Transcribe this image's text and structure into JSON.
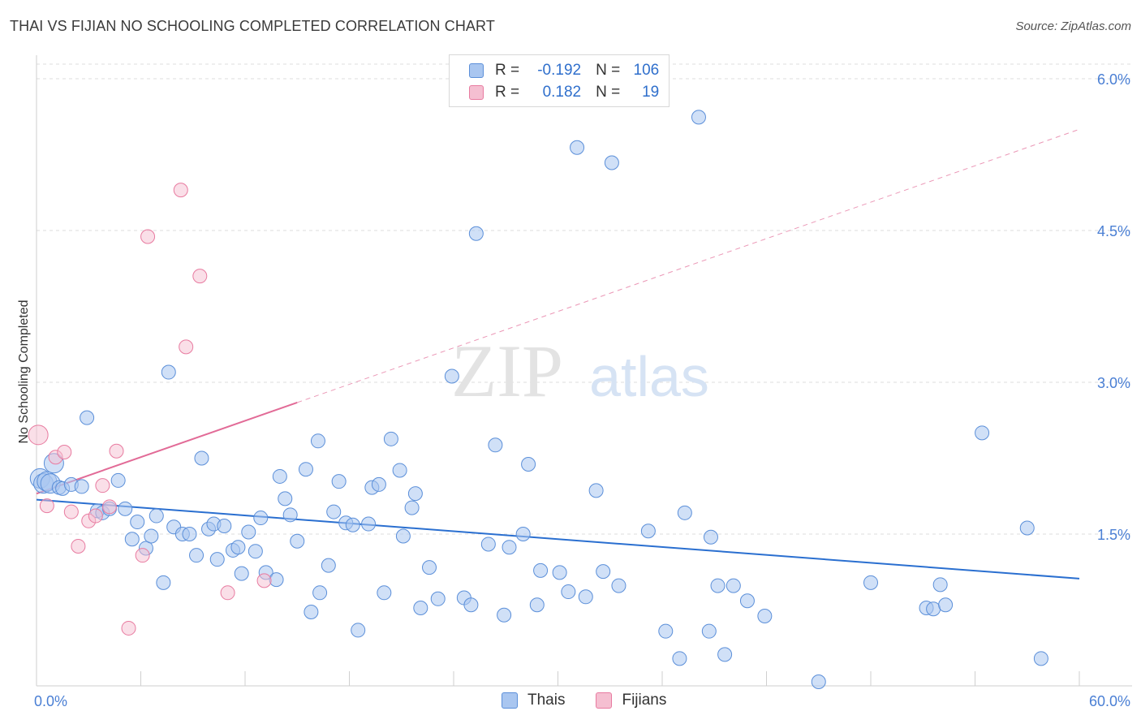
{
  "title": "THAI VS FIJIAN NO SCHOOLING COMPLETED CORRELATION CHART",
  "source": "Source: ZipAtlas.com",
  "watermark": {
    "zip": "ZIP",
    "atlas": "atlas"
  },
  "colors": {
    "blue": "#5b8fd9",
    "blue_fill": "#a9c6f0",
    "pink": "#e87ba0",
    "pink_fill": "#f5bfd1",
    "blue_line": "#2a6fd0",
    "pink_line": "#e26b97",
    "axis_text": "#4a7fd4"
  },
  "legend": {
    "rows": [
      {
        "series": "Thais",
        "r_label": "R =",
        "r_value": "-0.192",
        "n_label": "N =",
        "n_value": "106"
      },
      {
        "series": "Fijians",
        "r_label": "R =",
        "r_value": "0.182",
        "n_label": "N =",
        "n_value": "19"
      }
    ]
  },
  "bottom_legend": [
    {
      "label": "Thais"
    },
    {
      "label": "Fijians"
    }
  ],
  "chart_data": {
    "type": "scatter",
    "title": "THAI VS FIJIAN NO SCHOOLING COMPLETED CORRELATION CHART",
    "xlabel": "",
    "ylabel": "No Schooling Completed",
    "xlim": [
      0,
      60
    ],
    "ylim": [
      0,
      6.2
    ],
    "x_tick_labels": [
      "0.0%",
      "60.0%"
    ],
    "y_ticks": [
      1.5,
      3.0,
      4.5,
      6.0
    ],
    "y_tick_labels": [
      "1.5%",
      "3.0%",
      "4.5%",
      "6.0%"
    ],
    "series": [
      {
        "name": "Thais",
        "r": -0.192,
        "n": 106,
        "trend": {
          "x": [
            0,
            60
          ],
          "y": [
            1.84,
            1.06
          ]
        },
        "points": [
          [
            0.2,
            2.05
          ],
          [
            0.4,
            2.0
          ],
          [
            0.6,
            2.02
          ],
          [
            0.8,
            2.0
          ],
          [
            1.0,
            2.2
          ],
          [
            1.3,
            1.96
          ],
          [
            1.5,
            1.95
          ],
          [
            2.0,
            1.99
          ],
          [
            2.6,
            1.97
          ],
          [
            2.9,
            2.65
          ],
          [
            3.5,
            1.73
          ],
          [
            3.8,
            1.71
          ],
          [
            4.2,
            1.75
          ],
          [
            4.7,
            2.03
          ],
          [
            5.1,
            1.75
          ],
          [
            5.5,
            1.45
          ],
          [
            5.8,
            1.62
          ],
          [
            6.3,
            1.36
          ],
          [
            6.6,
            1.48
          ],
          [
            6.9,
            1.68
          ],
          [
            7.3,
            1.02
          ],
          [
            7.6,
            3.1
          ],
          [
            7.9,
            1.57
          ],
          [
            8.4,
            1.5
          ],
          [
            8.8,
            1.5
          ],
          [
            9.2,
            1.29
          ],
          [
            9.5,
            2.25
          ],
          [
            9.9,
            1.55
          ],
          [
            10.2,
            1.6
          ],
          [
            10.4,
            1.25
          ],
          [
            10.8,
            1.58
          ],
          [
            11.3,
            1.34
          ],
          [
            11.6,
            1.37
          ],
          [
            11.8,
            1.11
          ],
          [
            12.2,
            1.52
          ],
          [
            12.6,
            1.33
          ],
          [
            12.9,
            1.66
          ],
          [
            13.2,
            1.12
          ],
          [
            13.8,
            1.05
          ],
          [
            14.0,
            2.07
          ],
          [
            14.3,
            1.85
          ],
          [
            14.6,
            1.69
          ],
          [
            15.0,
            1.43
          ],
          [
            15.5,
            2.14
          ],
          [
            15.8,
            0.73
          ],
          [
            16.2,
            2.42
          ],
          [
            16.3,
            0.92
          ],
          [
            16.8,
            1.19
          ],
          [
            17.1,
            1.72
          ],
          [
            17.4,
            2.02
          ],
          [
            17.8,
            1.61
          ],
          [
            18.2,
            1.59
          ],
          [
            18.5,
            0.55
          ],
          [
            19.1,
            1.6
          ],
          [
            19.3,
            1.96
          ],
          [
            19.7,
            1.99
          ],
          [
            20.0,
            0.92
          ],
          [
            20.4,
            2.44
          ],
          [
            20.9,
            2.13
          ],
          [
            21.1,
            1.48
          ],
          [
            21.6,
            1.76
          ],
          [
            21.8,
            1.9
          ],
          [
            22.1,
            0.77
          ],
          [
            22.6,
            1.17
          ],
          [
            23.1,
            0.86
          ],
          [
            23.9,
            3.06
          ],
          [
            24.6,
            0.87
          ],
          [
            25.0,
            0.8
          ],
          [
            25.3,
            4.47
          ],
          [
            26.0,
            1.4
          ],
          [
            26.4,
            2.38
          ],
          [
            26.9,
            0.7
          ],
          [
            27.2,
            1.37
          ],
          [
            28.0,
            1.5
          ],
          [
            28.3,
            2.19
          ],
          [
            28.8,
            0.8
          ],
          [
            29.0,
            1.14
          ],
          [
            30.1,
            1.12
          ],
          [
            30.6,
            0.93
          ],
          [
            31.1,
            5.32
          ],
          [
            31.6,
            0.88
          ],
          [
            32.2,
            1.93
          ],
          [
            32.6,
            1.13
          ],
          [
            33.1,
            5.17
          ],
          [
            33.5,
            0.99
          ],
          [
            35.2,
            1.53
          ],
          [
            36.2,
            0.54
          ],
          [
            37.0,
            0.27
          ],
          [
            37.3,
            1.71
          ],
          [
            38.1,
            5.62
          ],
          [
            38.7,
            0.54
          ],
          [
            38.8,
            1.47
          ],
          [
            39.2,
            0.99
          ],
          [
            39.6,
            0.31
          ],
          [
            40.1,
            0.99
          ],
          [
            40.9,
            0.84
          ],
          [
            41.9,
            0.69
          ],
          [
            45.0,
            0.04
          ],
          [
            48.0,
            1.02
          ],
          [
            51.2,
            0.77
          ],
          [
            51.6,
            0.76
          ],
          [
            52.0,
            1.0
          ],
          [
            52.3,
            0.8
          ],
          [
            57.0,
            1.56
          ],
          [
            57.8,
            0.27
          ],
          [
            54.4,
            2.5
          ]
        ]
      },
      {
        "name": "Fijians",
        "r": 0.182,
        "n": 19,
        "trend": {
          "x": [
            0,
            15
          ],
          "y": [
            1.9,
            2.8
          ]
        },
        "trend_dashed": {
          "x": [
            15,
            60
          ],
          "y": [
            2.8,
            5.5
          ]
        },
        "points": [
          [
            0.1,
            2.48
          ],
          [
            0.6,
            1.78
          ],
          [
            1.1,
            2.26
          ],
          [
            1.6,
            2.31
          ],
          [
            2.0,
            1.72
          ],
          [
            2.4,
            1.38
          ],
          [
            3.0,
            1.63
          ],
          [
            3.4,
            1.68
          ],
          [
            3.8,
            1.98
          ],
          [
            4.2,
            1.77
          ],
          [
            4.6,
            2.32
          ],
          [
            5.3,
            0.57
          ],
          [
            6.1,
            1.29
          ],
          [
            6.4,
            4.44
          ],
          [
            8.3,
            4.9
          ],
          [
            8.6,
            3.35
          ],
          [
            9.4,
            4.05
          ],
          [
            11.0,
            0.92
          ],
          [
            13.1,
            1.04
          ]
        ]
      }
    ]
  }
}
